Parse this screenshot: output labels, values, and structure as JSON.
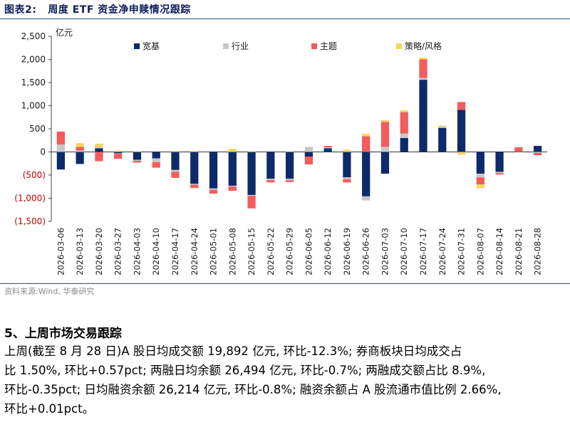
{
  "figure": {
    "label": "图表2:",
    "title": "周度 ETF 资金净申赎情况跟踪",
    "source": "资料来源:Wind, 华泰研究"
  },
  "section": {
    "heading": "5、上周市场交易跟踪",
    "lines": [
      "上周(截至 8 月 28 日)A 股日均成交额 19,892 亿元, 环比-12.3%; 券商板块日均成交占",
      "比 1.50%, 环比+0.57pct; 两融日均余额 26,494 亿元, 环比-0.7%; 两融成交额占比 8.9%,",
      "环比-0.35pct; 日均融资余额 26,214 亿元, 环比-0.8%; 融资余额占 A 股流通市值比例 2.66%,",
      "环比+0.01pct。"
    ]
  },
  "chart_data": {
    "type": "bar",
    "stacked": true,
    "ylabel": "亿元",
    "ylim": [
      -1500,
      2500
    ],
    "yticks": [
      2500,
      2000,
      1500,
      1000,
      500,
      0,
      -500,
      -1000,
      -1500
    ],
    "ytick_labels": [
      "2,500",
      "2,000",
      "1,500",
      "1,000",
      "500",
      "0",
      "(500)",
      "(1,000)",
      "(1,500)"
    ],
    "legend_position": "top",
    "categories": [
      "2026-03-06",
      "2026-03-13",
      "2026-03-20",
      "2026-03-27",
      "2026-04-03",
      "2026-04-10",
      "2026-04-17",
      "2026-04-24",
      "2026-05-01",
      "2026-05-08",
      "2026-05-15",
      "2026-05-22",
      "2026-05-29",
      "2026-06-05",
      "2026-06-12",
      "2026-06-19",
      "2026-06-26",
      "2026-07-03",
      "2026-07-10",
      "2026-07-17",
      "2026-07-24",
      "2026-07-31",
      "2026-08-07",
      "2026-08-14",
      "2026-08-21",
      "2026-08-28"
    ],
    "series": [
      {
        "name": "宽基",
        "color": "#0d2a6b",
        "values": [
          -380,
          -260,
          80,
          -30,
          -170,
          -140,
          -390,
          -690,
          -790,
          -730,
          -930,
          -580,
          -580,
          -100,
          80,
          -550,
          -960,
          -470,
          300,
          1560,
          520,
          910,
          -470,
          -430,
          0,
          130
        ]
      },
      {
        "name": "行业",
        "color": "#c8c8c8",
        "values": [
          160,
          30,
          20,
          -10,
          -20,
          -80,
          -40,
          -20,
          -30,
          -20,
          -20,
          -30,
          -30,
          110,
          20,
          -40,
          -90,
          110,
          100,
          40,
          30,
          -10,
          -80,
          -30,
          0,
          -20
        ]
      },
      {
        "name": "主题",
        "color": "#f25c5c",
        "values": [
          280,
          80,
          -200,
          -110,
          -40,
          -120,
          -130,
          -70,
          -80,
          -90,
          -270,
          -50,
          -40,
          -170,
          30,
          -70,
          340,
          540,
          460,
          400,
          0,
          170,
          -150,
          -30,
          100,
          -50
        ]
      },
      {
        "name": "策略/风格",
        "color": "#f7d65a",
        "values": [
          0,
          80,
          80,
          30,
          10,
          0,
          20,
          20,
          0,
          70,
          10,
          0,
          10,
          0,
          0,
          50,
          50,
          40,
          40,
          40,
          20,
          -50,
          -80,
          0,
          0,
          0
        ]
      }
    ],
    "negative_label_color": "#c00000"
  }
}
